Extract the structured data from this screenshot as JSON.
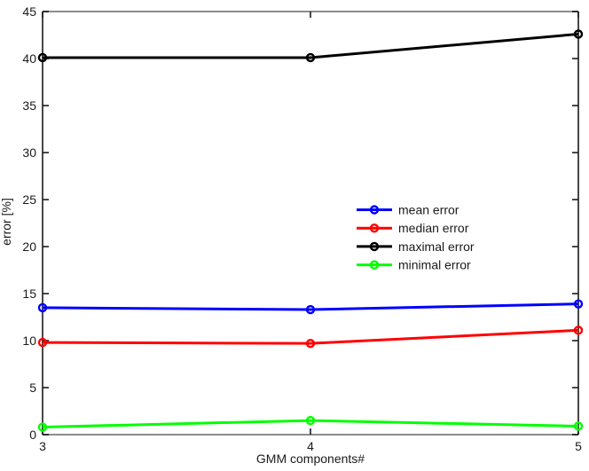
{
  "chart_data": {
    "type": "line",
    "title": "",
    "xlabel": "GMM components#",
    "ylabel": "error [%]",
    "x": [
      3,
      4,
      5
    ],
    "series": [
      {
        "name": "mean error",
        "color": "#0000ff",
        "values": [
          13.5,
          13.3,
          13.9
        ]
      },
      {
        "name": "median error",
        "color": "#ff0000",
        "values": [
          9.8,
          9.7,
          11.1
        ]
      },
      {
        "name": "maximal error",
        "color": "#000000",
        "values": [
          40.1,
          40.1,
          42.6
        ]
      },
      {
        "name": "minimal error",
        "color": "#00ff00",
        "values": [
          0.8,
          1.5,
          0.9
        ]
      }
    ],
    "xlim": [
      3,
      5
    ],
    "ylim": [
      0,
      45
    ],
    "xticks": [
      3,
      4,
      5
    ],
    "xtick_labels": [
      "3",
      "4",
      "5"
    ],
    "yticks": [
      0,
      5,
      10,
      15,
      20,
      25,
      30,
      35,
      40,
      45
    ],
    "ytick_labels": [
      "0",
      "5",
      "10",
      "15",
      "20",
      "25",
      "30",
      "35",
      "40",
      "45"
    ],
    "marker": "o",
    "grid": false,
    "legend_position": "middle-right",
    "legend_box": false
  }
}
